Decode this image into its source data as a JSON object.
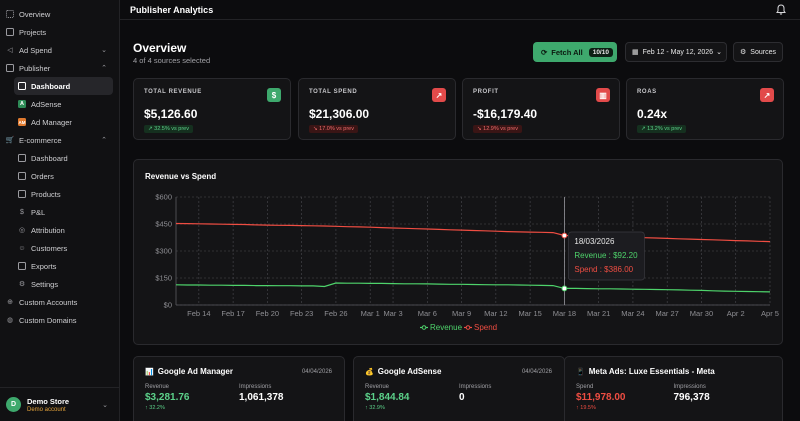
{
  "sidebar": {
    "items": [
      {
        "label": "Overview",
        "icon": "grid-icon"
      },
      {
        "label": "Projects",
        "icon": "folder-icon"
      },
      {
        "label": "Ad Spend",
        "icon": "megaphone-icon"
      },
      {
        "label": "Publisher",
        "icon": "newspaper-icon"
      },
      {
        "label": "Dashboard"
      },
      {
        "label": "AdSense",
        "badge": "A"
      },
      {
        "label": "Ad Manager",
        "badge": "AM"
      },
      {
        "label": "E-commerce",
        "icon": "cart-icon"
      },
      {
        "label": "Dashboard"
      },
      {
        "label": "Orders"
      },
      {
        "label": "Products"
      },
      {
        "label": "P&L"
      },
      {
        "label": "Attribution"
      },
      {
        "label": "Customers"
      },
      {
        "label": "Exports"
      },
      {
        "label": "Settings"
      },
      {
        "label": "Custom Accounts"
      },
      {
        "label": "Custom Domains"
      }
    ],
    "store": {
      "initial": "D",
      "name": "Demo Store",
      "sub": "Demo account"
    }
  },
  "header": {
    "title": "Publisher Analytics"
  },
  "overview": {
    "title": "Overview",
    "subtitle": "4 of 4 sources selected",
    "fetch_label": "Fetch All",
    "fetch_count": "10/10",
    "date_range": "Feb 12 - May 12, 2026",
    "sources_label": "Sources"
  },
  "kpis": [
    {
      "label": "TOTAL REVENUE",
      "value": "$5,126.60",
      "change": "↗ 32.5% vs prev",
      "trend": "up",
      "icon": "$",
      "icon_color": "#3ea96d"
    },
    {
      "label": "TOTAL SPEND",
      "value": "$21,306.00",
      "change": "↘ 17.0% vs prev",
      "trend": "down",
      "icon": "↗",
      "icon_color": "#e24a4a"
    },
    {
      "label": "PROFIT",
      "value": "-$16,179.40",
      "change": "↘ 12.9% vs prev",
      "trend": "down",
      "icon": "▥",
      "icon_color": "#e24a4a"
    },
    {
      "label": "ROAS",
      "value": "0.24x",
      "change": "↗ 13.2% vs prev",
      "trend": "up",
      "icon": "↗",
      "icon_color": "#e24a4a"
    }
  ],
  "chart_data": {
    "type": "line",
    "title": "Revenue vs Spend",
    "x": [
      "Feb 12",
      "Feb 13",
      "Feb 14",
      "Feb 15",
      "Feb 16",
      "Feb 17",
      "Feb 18",
      "Feb 19",
      "Feb 20",
      "Feb 21",
      "Feb 22",
      "Feb 23",
      "Feb 24",
      "Feb 25",
      "Feb 26",
      "Feb 27",
      "Feb 28",
      "Mar 1",
      "Mar 2",
      "Mar 3",
      "Mar 4",
      "Mar 5",
      "Mar 6",
      "Mar 7",
      "Mar 8",
      "Mar 9",
      "Mar 10",
      "Mar 11",
      "Mar 12",
      "Mar 13",
      "Mar 14",
      "Mar 15",
      "Mar 16",
      "Mar 17",
      "Mar 18",
      "Mar 19",
      "Mar 20",
      "Mar 21",
      "Mar 22",
      "Mar 23",
      "Mar 24",
      "Mar 25",
      "Mar 26",
      "Mar 27",
      "Mar 28",
      "Mar 29",
      "Mar 30",
      "Mar 31",
      "Apr 1",
      "Apr 2",
      "Apr 3",
      "Apr 4",
      "Apr 5"
    ],
    "xticks": [
      "Feb 14",
      "Feb 17",
      "Feb 20",
      "Feb 23",
      "Feb 26",
      "Mar 1",
      "Mar 3",
      "Mar 6",
      "Mar 9",
      "Mar 12",
      "Mar 15",
      "Mar 18",
      "Mar 21",
      "Mar 24",
      "Mar 27",
      "Mar 30",
      "Apr 2",
      "Apr 5"
    ],
    "yticks": [
      "$0",
      "$150",
      "$300",
      "$450",
      "$600"
    ],
    "ylim": [
      0,
      600
    ],
    "series": [
      {
        "name": "Revenue",
        "color": "#4ed36b",
        "values": [
          112,
          111,
          111,
          110,
          110,
          109,
          109,
          108,
          108,
          107,
          107,
          106,
          106,
          103,
          122,
          121,
          121,
          120,
          120,
          119,
          118,
          118,
          117,
          116,
          115,
          115,
          114,
          113,
          112,
          112,
          111,
          110,
          109,
          108,
          92,
          92,
          91,
          90,
          90,
          89,
          88,
          87,
          86,
          85,
          84,
          82,
          81,
          79,
          77,
          76,
          75,
          74,
          73
        ]
      },
      {
        "name": "Spend",
        "color": "#ef4d42",
        "values": [
          453,
          452,
          451,
          450,
          449,
          448,
          447,
          445,
          444,
          443,
          442,
          441,
          440,
          439,
          437,
          435,
          434,
          432,
          430,
          428,
          426,
          424,
          422,
          420,
          418,
          416,
          414,
          412,
          410,
          408,
          406,
          405,
          404,
          402,
          386,
          385,
          384,
          382,
          380,
          378,
          376,
          374,
          372,
          370,
          368,
          366,
          364,
          362,
          360,
          358,
          356,
          354,
          352
        ]
      }
    ],
    "tooltip": {
      "date": "18/03/2026",
      "revenue_line": "Revenue : $92.20",
      "spend_line": "Spend : $386.00",
      "index": 34
    },
    "legend": [
      "Revenue",
      "Spend"
    ],
    "grid": true
  },
  "sources": [
    {
      "name": "Google Ad Manager",
      "emoji": "📊",
      "date": "04/04/2026",
      "c1_label": "Revenue",
      "c1_value": "$3,281.76",
      "c1_color": "#5cd28a",
      "c1_change": "↑ 32.2%",
      "c2_label": "Impressions",
      "c2_value": "1,061,378"
    },
    {
      "name": "Google AdSense",
      "emoji": "💰",
      "date": "04/04/2026",
      "c1_label": "Revenue",
      "c1_value": "$1,844.84",
      "c1_color": "#5cd28a",
      "c1_change": "↑ 32.9%",
      "c2_label": "Impressions",
      "c2_value": "0"
    },
    {
      "name": "Meta Ads: Luxe Essentials - Meta",
      "emoji": "📱",
      "date": "",
      "c1_label": "Spend",
      "c1_value": "$11,978.00",
      "c1_color": "#ef4d42",
      "c1_change": "↑ 19.5%",
      "c2_label": "Impressions",
      "c2_value": "796,378"
    }
  ]
}
